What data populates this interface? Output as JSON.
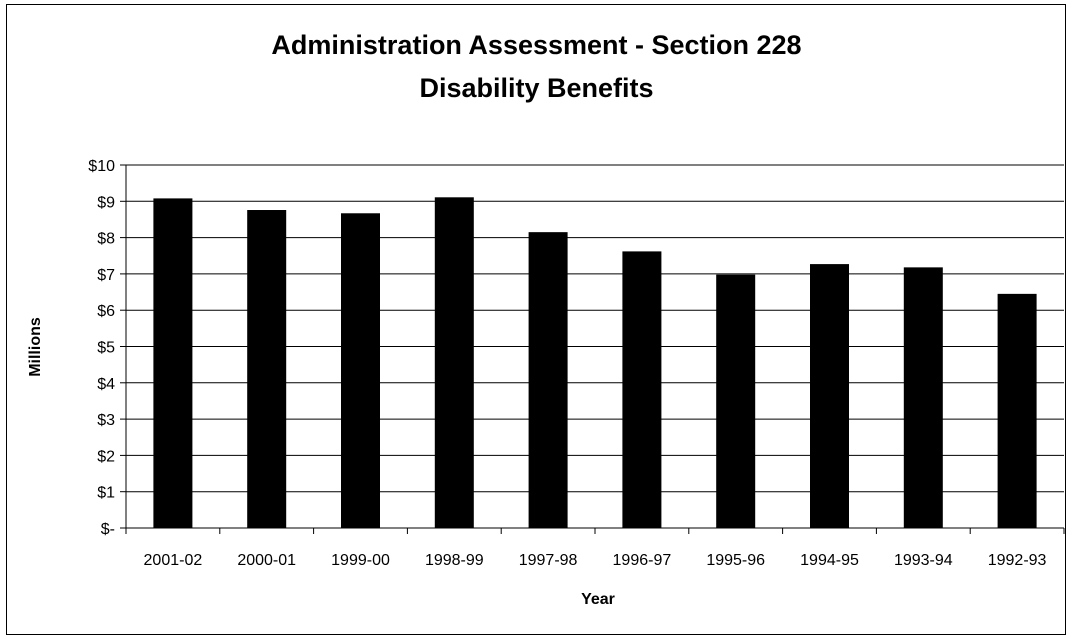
{
  "chart_data": {
    "type": "bar",
    "title": "Administration Assessment - Section 228",
    "subtitle": "Disability Benefits",
    "xlabel": "Year",
    "ylabel": "Millions",
    "categories": [
      "2001-02",
      "2000-01",
      "1999-00",
      "1998-99",
      "1997-98",
      "1996-97",
      "1995-96",
      "1994-95",
      "1993-94",
      "1992-93"
    ],
    "values": [
      9.08,
      8.76,
      8.67,
      9.11,
      8.15,
      7.62,
      6.98,
      7.27,
      7.18,
      6.45
    ],
    "ylim": [
      0,
      10
    ],
    "yticks": [
      0,
      1,
      2,
      3,
      4,
      5,
      6,
      7,
      8,
      9,
      10
    ],
    "ytick_labels": [
      "$-",
      "$1",
      "$2",
      "$3",
      "$4",
      "$5",
      "$6",
      "$7",
      "$8",
      "$9",
      "$10"
    ],
    "grid": true,
    "legend": "none",
    "bar_color": "#000000"
  }
}
